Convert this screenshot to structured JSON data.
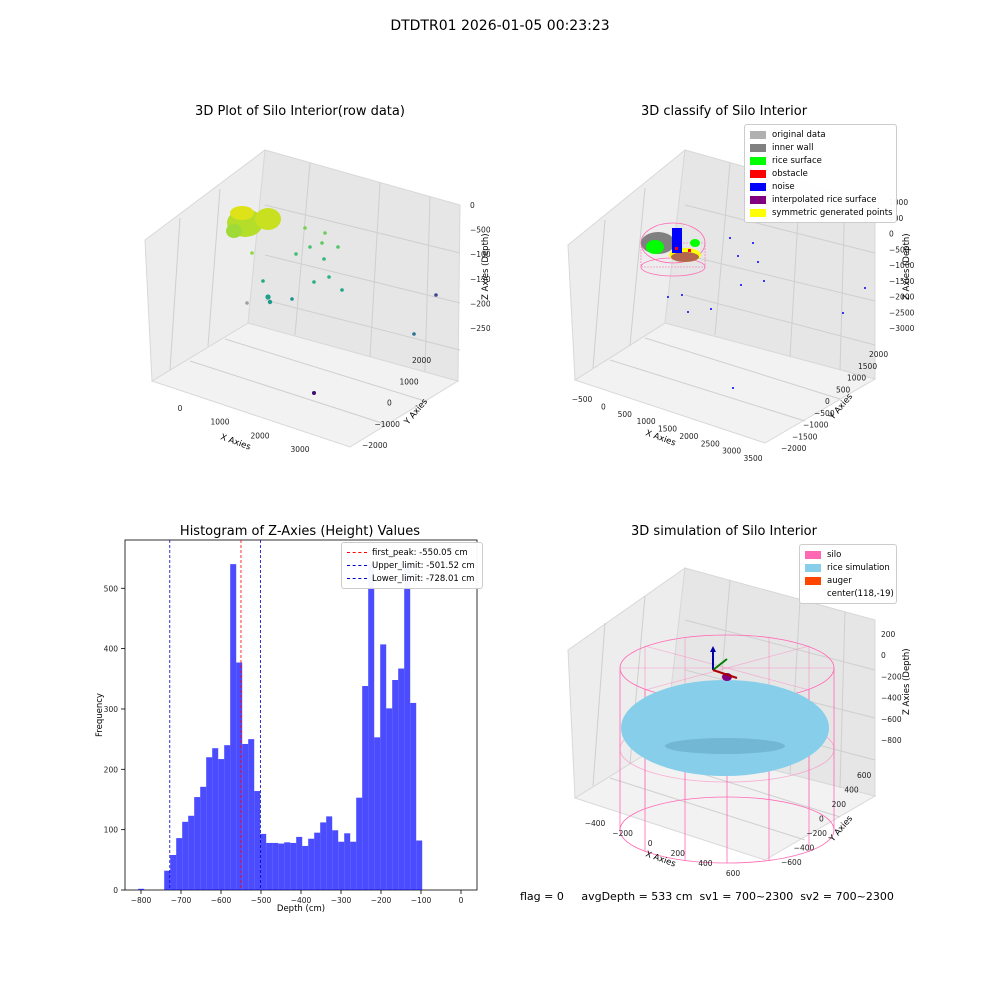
{
  "sup_title": "DTDTR01 2026-01-05 00:23:23",
  "panel_raw": {
    "title": "3D Plot of Silo Interior(row data)",
    "x_ticks": [
      "0",
      "1000",
      "2000",
      "3000"
    ],
    "y_ticks": [
      "2000",
      "1000",
      "0",
      "−1000",
      "−2000"
    ],
    "z_ticks": [
      "0",
      "−500",
      "−1000",
      "−1500",
      "−2000",
      "−2500"
    ],
    "xlabel": "X Axies",
    "ylabel": "Y Axies",
    "zlabel": "Z Axies (Depth)"
  },
  "panel_classify": {
    "title": "3D classify of Silo Interior",
    "x_ticks": [
      "−500",
      "0",
      "500",
      "1000",
      "1500",
      "2000",
      "2500",
      "3000",
      "3500"
    ],
    "y_ticks": [
      "2000",
      "1500",
      "1000",
      "500",
      "0",
      "−500",
      "−1000",
      "−1500",
      "−2000"
    ],
    "z_ticks": [
      "1000",
      "500",
      "0",
      "−500",
      "−1000",
      "−1500",
      "−2000",
      "−2500",
      "−3000"
    ],
    "xlabel": "X Axies",
    "ylabel": "Y Axies",
    "zlabel": "Z Axies (Depth)",
    "legend": [
      {
        "label": "original data",
        "color": "#b0b0b0"
      },
      {
        "label": "inner wall",
        "color": "#808080"
      },
      {
        "label": "rice surface",
        "color": "#00ff00"
      },
      {
        "label": "obstacle",
        "color": "#ff0000"
      },
      {
        "label": "noise",
        "color": "#0000ff"
      },
      {
        "label": "interpolated rice surface",
        "color": "#800080"
      },
      {
        "label": "symmetric generated points",
        "color": "#ffff00"
      }
    ]
  },
  "panel_sim": {
    "title": "3D simulation of Silo Interior",
    "x_ticks": [
      "−400",
      "−200",
      "0",
      "200",
      "400",
      "600"
    ],
    "y_ticks": [
      "600",
      "400",
      "200",
      "0",
      "−200",
      "−400",
      "−600"
    ],
    "z_ticks": [
      "200",
      "0",
      "−200",
      "−400",
      "−600",
      "−800"
    ],
    "xlabel": "X Axies",
    "ylabel": "Y Axies",
    "zlabel": "Z Axies (Depth)",
    "legend": [
      {
        "label": "silo",
        "color": "#ff69b4"
      },
      {
        "label": "rice simulation",
        "color": "#87ceeb"
      },
      {
        "label": "auger",
        "color": "#ff4500"
      },
      {
        "label": "center(118,-19)",
        "color": ""
      }
    ]
  },
  "footer": "flag = 0     avgDepth = 533 cm  sv1 = 700~2300  sv2 = 700~2300",
  "chart_data": {
    "type": "bar",
    "title": "Histogram of Z-Axies (Height) Values",
    "xlabel": "Depth (cm)",
    "ylabel": "Frequency",
    "xlim": [
      -840,
      40
    ],
    "ylim": [
      0,
      580
    ],
    "x_ticks": [
      -800,
      -700,
      -600,
      -500,
      -400,
      -300,
      -200,
      -100,
      0
    ],
    "y_ticks": [
      0,
      100,
      200,
      300,
      400,
      500
    ],
    "bin_start": -742,
    "bin_width": 15,
    "values": [
      32,
      58,
      86,
      113,
      123,
      154,
      171,
      220,
      235,
      217,
      240,
      540,
      377,
      242,
      250,
      164,
      93,
      78,
      78,
      77,
      79,
      78,
      88,
      73,
      85,
      95,
      112,
      122,
      99,
      80,
      94,
      80,
      153,
      338,
      540,
      253,
      407,
      301,
      348,
      367,
      538,
      310,
      82
    ],
    "outliers": [
      {
        "x_start": -807,
        "x_end": -792,
        "value": 2
      }
    ],
    "bar_color": "#0000ff",
    "vlines": [
      {
        "name": "first_peak: -550.05 cm",
        "x": -550.05,
        "color": "#ff0000"
      },
      {
        "name": "Upper_limit: -501.52 cm",
        "x": -501.52,
        "color": "#0000cc"
      },
      {
        "name": "Lower_limit: -728.01 cm",
        "x": -728.01,
        "color": "#0000cc"
      }
    ],
    "legend_position": "upper right"
  }
}
